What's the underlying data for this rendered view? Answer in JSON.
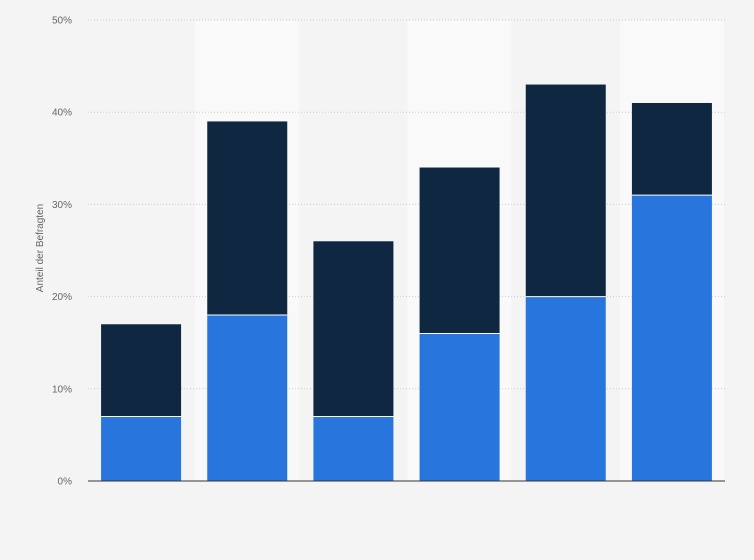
{
  "chart_data": {
    "type": "bar",
    "stacked": true,
    "title": "",
    "xlabel": "",
    "ylabel": "Anteil der Befragten",
    "categories": [
      "",
      "",
      "",
      "",
      "",
      ""
    ],
    "series": [
      {
        "values": [
          7,
          18,
          7,
          16,
          20,
          31
        ],
        "color": "#2876dd"
      },
      {
        "values": [
          10,
          21,
          19,
          18,
          23,
          10
        ],
        "color": "#0f2741"
      }
    ],
    "ylim": [
      0,
      50
    ],
    "yticks": [
      0,
      10,
      20,
      30,
      40,
      50
    ],
    "ytick_labels": [
      "0%",
      "10%",
      "20%",
      "30%",
      "40%",
      "50%"
    ],
    "grid": true,
    "legend": "none",
    "colors": {
      "background": "#f4f4f4",
      "band": "#f9f9f9",
      "gridline": "#cccccc",
      "axis": "#333333"
    }
  }
}
